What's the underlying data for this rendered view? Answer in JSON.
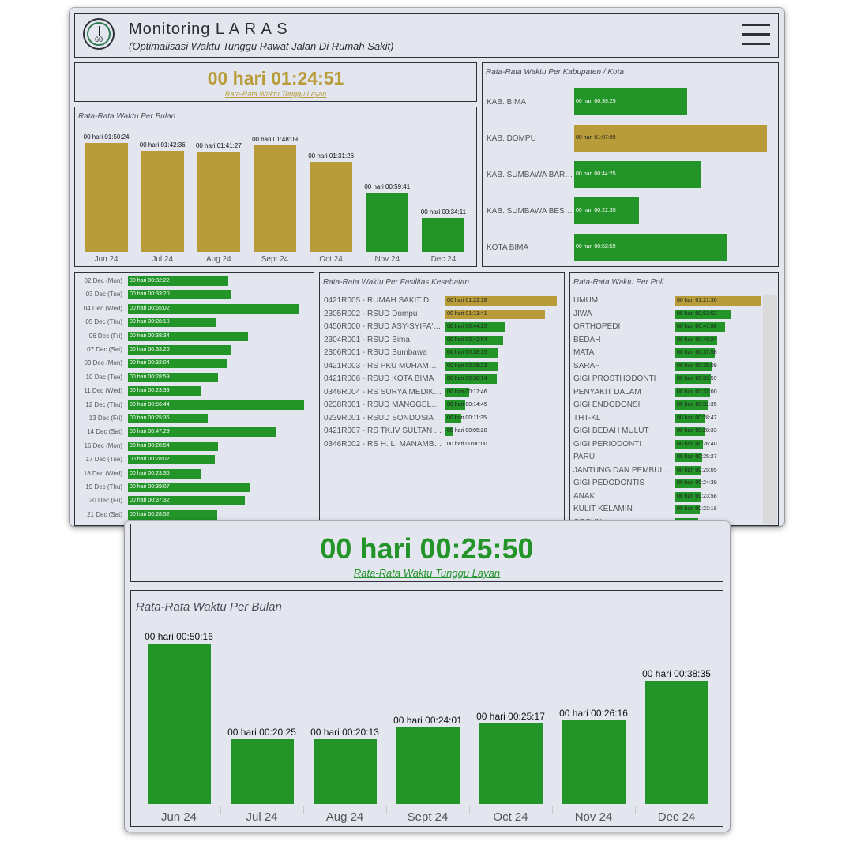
{
  "header": {
    "title": "Monitoring L A R A S",
    "subtitle": "(Optimalisasi Waktu Tunggu Rawat Jalan Di Rumah Sakit)",
    "logo_text": "60"
  },
  "kpi_main": {
    "value": "00 hari 01:24:51",
    "label": "Rata-Rata Waktu Tunggu Layan"
  },
  "monthly_main": {
    "title": "Rata-Rata Waktu Per Bulan",
    "chart_data": {
      "type": "bar",
      "categories": [
        "Jun 24",
        "Jul 24",
        "Aug 24",
        "Sept 24",
        "Oct 24",
        "Nov 24",
        "Dec 24"
      ],
      "labels": [
        "00 hari 01:50:24",
        "00 hari 01:42:36",
        "00 hari 01:41:27",
        "00 hari 01:48:09",
        "00 hari 01:31:26",
        "00 hari 00:59:41",
        "00 hari 00:34:11"
      ],
      "values_minutes": [
        110.4,
        102.6,
        101.45,
        108.15,
        91.43,
        59.68,
        34.18
      ],
      "colors": [
        "gold",
        "gold",
        "gold",
        "gold",
        "gold",
        "green",
        "green"
      ]
    }
  },
  "kabupaten": {
    "title": "Rata-Rata Waktu Per Kabupaten / Kota",
    "chart_data": {
      "type": "bar",
      "categories": [
        "KAB. BIMA",
        "KAB. DOMPU",
        "KAB. SUMBAWA BARAT",
        "KAB. SUMBAWA BESAR",
        "KOTA BIMA"
      ],
      "labels": [
        "00 hari 00:39:29",
        "00 hari 01:07:09",
        "00 hari 00:44:25",
        "00 hari 00:22:35",
        "00 hari 00:52:59"
      ],
      "values_minutes": [
        39.48,
        67.15,
        44.42,
        22.58,
        52.98
      ],
      "colors": [
        "green",
        "gold",
        "green",
        "green",
        "green"
      ]
    }
  },
  "daily": {
    "chart_data": {
      "type": "bar",
      "categories": [
        "02 Dec (Mon)",
        "03 Dec (Tue)",
        "04 Dec (Wed)",
        "05 Dec (Thu)",
        "06 Dec (Fri)",
        "07 Dec (Sat)",
        "09 Dec (Mon)",
        "10 Dec (Tue)",
        "11 Dec (Wed)",
        "12 Dec (Thu)",
        "13 Dec (Fri)",
        "14 Dec (Sat)",
        "16 Dec (Mon)",
        "17 Dec (Tue)",
        "18 Dec (Wed)",
        "19 Dec (Thu)",
        "20 Dec (Fri)",
        "21 Dec (Sat)"
      ],
      "labels": [
        "00 hari 00:32:22",
        "00 hari 00:33:20",
        "00 hari 00:55:02",
        "00 hari 00:28:18",
        "00 hari 00:38:34",
        "00 hari 00:33:26",
        "00 hari 00:32:04",
        "00 hari 00:28:59",
        "00 hari 00:23:39",
        "00 hari 00:56:44",
        "00 hari 00:25:36",
        "00 hari 00:47:29",
        "00 hari 00:28:54",
        "00 hari 00:28:02",
        "00 hari 00:23:36",
        "00 hari 00:39:07",
        "00 hari 00:37:32",
        "00 hari 00:28:52"
      ],
      "values_minutes": [
        32.37,
        33.33,
        55.03,
        28.3,
        38.57,
        33.43,
        32.07,
        28.98,
        23.65,
        56.73,
        25.6,
        47.48,
        28.9,
        28.03,
        23.6,
        39.12,
        37.53,
        28.87
      ],
      "colors": [
        "green",
        "green",
        "green",
        "green",
        "green",
        "green",
        "green",
        "green",
        "green",
        "green",
        "green",
        "green",
        "green",
        "green",
        "green",
        "green",
        "green",
        "green"
      ]
    }
  },
  "fasilitas": {
    "title": "Rata-Rata Waktu Per Fasilitas Kesehatan",
    "chart_data": {
      "type": "bar",
      "categories": [
        "0421R005 - RUMAH SAKIT DR A...",
        "2305R002 - RSUD Dompu",
        "0450R000 - RSUD ASY-SYIFA' S...",
        "2304R001 - RSUD Bima",
        "2306R001 - RSUD Sumbawa",
        "0421R003 - RS PKU MUHAMMA...",
        "0421R006 - RSUD KOTA BIMA",
        "0346R004 - RS SURYA MEDIKA ...",
        "0238R001 - RSUD MANGGELEW...",
        "0239R001 - RSUD SONDOSIA",
        "0421R007 - RS TK.IV SULTAN A...",
        "0346R002 - RS H. L. MANAMBAI..."
      ],
      "labels": [
        "00 hari 01:22:18",
        "00 hari 01:13:41",
        "00 hari 00:44:25",
        "00 hari 00:42:54",
        "00 hari 00:38:35",
        "00 hari 00:38:23",
        "00 hari 00:38:14",
        "00 hari 00:17:46",
        "00 hari 00:14:45",
        "00 hari 00:11:35",
        "00 hari 00:05:28",
        "00 hari 00:00:00"
      ],
      "values_minutes": [
        82.3,
        73.68,
        44.42,
        42.9,
        38.58,
        38.38,
        38.23,
        17.77,
        14.75,
        11.58,
        5.47,
        0
      ],
      "colors": [
        "gold",
        "gold",
        "green",
        "green",
        "green",
        "green",
        "green",
        "green",
        "green",
        "green",
        "green",
        "green"
      ]
    }
  },
  "poli": {
    "title": "Rata-Rata Waktu Per Poli",
    "chart_data": {
      "type": "bar",
      "categories": [
        "UMUM",
        "JIWA",
        "ORTHOPEDI",
        "BEDAH",
        "MATA",
        "SARAF",
        "GIGI PROSTHODONTI",
        "PENYAKIT DALAM",
        "GIGI ENDODONSI",
        "THT-KL",
        "GIGI BEDAH MULUT",
        "GIGI PERIODONTI",
        "PARU",
        "JANTUNG DAN PEMBULU...",
        "GIGI PEDODONTIS",
        "ANAK",
        "KULIT KELAMIN",
        "OBGYN"
      ],
      "labels": [
        "00 hari 01:21:36",
        "00 hari 00:53:52",
        "00 hari 00:47:58",
        "00 hari 00:40:24",
        "00 hari 00:37:58",
        "00 hari 00:35:09",
        "00 hari 00:33:59",
        "00 hari 00:33:00",
        "00 hari 00:31:35",
        "00 hari 00:28:47",
        "00 hari 00:28:33",
        "00 hari 00:26:40",
        "00 hari 00:25:27",
        "00 hari 00:25:05",
        "00 hari 00:24:39",
        "00 hari 00:23:58",
        "00 hari 00:23:18",
        ""
      ],
      "values_minutes": [
        81.6,
        53.87,
        47.97,
        40.4,
        37.97,
        35.15,
        33.98,
        33,
        31.58,
        28.78,
        28.55,
        26.67,
        25.45,
        25.08,
        24.65,
        23.97,
        23.3,
        22
      ],
      "colors": [
        "gold",
        "green",
        "green",
        "green",
        "green",
        "green",
        "green",
        "green",
        "green",
        "green",
        "green",
        "green",
        "green",
        "green",
        "green",
        "green",
        "green",
        "green"
      ]
    }
  },
  "kpi_second": {
    "value": "00 hari 00:25:50",
    "label": "Rata-Rata Waktu Tunggu Layan"
  },
  "monthly_second": {
    "title": "Rata-Rata Waktu Per Bulan",
    "chart_data": {
      "type": "bar",
      "categories": [
        "Jun 24",
        "Jul 24",
        "Aug 24",
        "Sept 24",
        "Oct 24",
        "Nov 24",
        "Dec 24"
      ],
      "labels": [
        "00 hari 00:50:16",
        "00 hari 00:20:25",
        "00 hari 00:20:13",
        "00 hari 00:24:01",
        "00 hari 00:25:17",
        "00 hari 00:26:16",
        "00 hari 00:38:35"
      ],
      "values_minutes": [
        50.27,
        20.42,
        20.22,
        24.02,
        25.28,
        26.27,
        38.58
      ],
      "colors": [
        "green",
        "green",
        "green",
        "green",
        "green",
        "green",
        "green"
      ]
    }
  },
  "colors": {
    "gold": "#b89c3a",
    "green": "#229428",
    "panel_bg": "#e3e6ef",
    "border": "#2f3138"
  }
}
